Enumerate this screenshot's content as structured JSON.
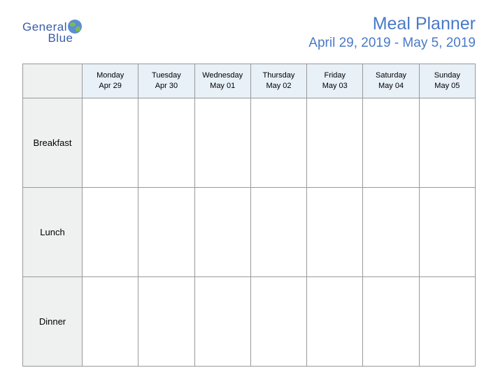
{
  "logo": {
    "word1": "General",
    "word2": "Blue"
  },
  "header": {
    "title": "Meal Planner",
    "date_range": "April 29, 2019 - May 5, 2019"
  },
  "table": {
    "header_bg": "#e8f0f8",
    "rowlabel_bg": "#eff0f0",
    "border_color": "#999999",
    "days": [
      {
        "name": "Monday",
        "date": "Apr 29"
      },
      {
        "name": "Tuesday",
        "date": "Apr 30"
      },
      {
        "name": "Wednesday",
        "date": "May 01"
      },
      {
        "name": "Thursday",
        "date": "May 02"
      },
      {
        "name": "Friday",
        "date": "May 03"
      },
      {
        "name": "Saturday",
        "date": "May 04"
      },
      {
        "name": "Sunday",
        "date": "May 05"
      }
    ],
    "meals": [
      "Breakfast",
      "Lunch",
      "Dinner"
    ]
  },
  "colors": {
    "title_color": "#4a79c7",
    "logo_color": "#3a5ca8"
  }
}
